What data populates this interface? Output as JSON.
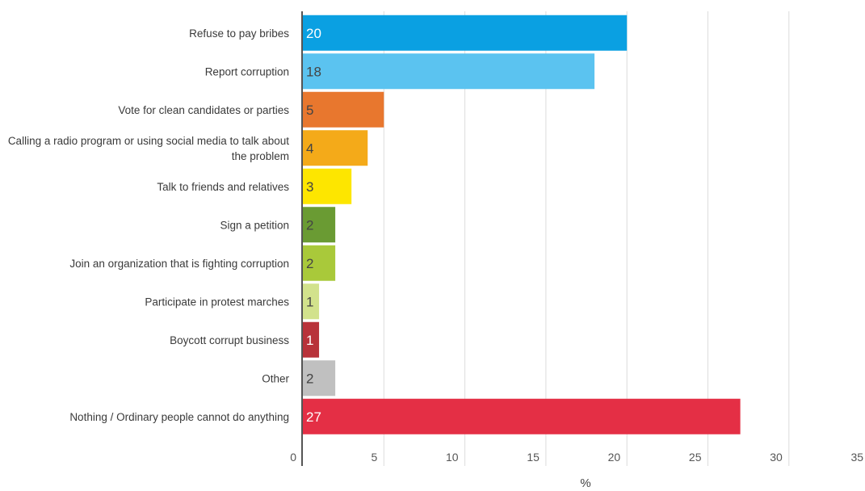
{
  "chart_data": {
    "type": "bar",
    "orientation": "horizontal",
    "title": "",
    "xlabel": "%",
    "ylabel": "",
    "xlim": [
      0,
      35
    ],
    "x_ticks": [
      0,
      5,
      10,
      15,
      20,
      25,
      30,
      35
    ],
    "grid": "vertical",
    "legend": "none",
    "categories": [
      "Refuse to pay bribes",
      "Report corruption",
      "Vote for clean candidates or parties",
      "Calling a radio program or using social media to talk about the problem",
      "Talk to friends and relatives",
      "Sign a petition",
      "Join an organization that is fighting corruption",
      "Participate in protest marches",
      "Boycott corrupt business",
      "Other",
      "Nothing / Ordinary people cannot do anything"
    ],
    "values": [
      20,
      18,
      5,
      4,
      3,
      2,
      2,
      1,
      1,
      2,
      27
    ],
    "bar_colors": [
      "#0aa0e2",
      "#5bc3f0",
      "#e8772e",
      "#f4aa19",
      "#fde600",
      "#6a9b33",
      "#a9c93a",
      "#d2e28c",
      "#b8323a",
      "#c0c0c0",
      "#e42f45"
    ],
    "value_label_colors": [
      "#ffffff",
      "#444444",
      "#444444",
      "#444444",
      "#444444",
      "#444444",
      "#444444",
      "#444444",
      "#ffffff",
      "#444444",
      "#ffffff"
    ]
  }
}
